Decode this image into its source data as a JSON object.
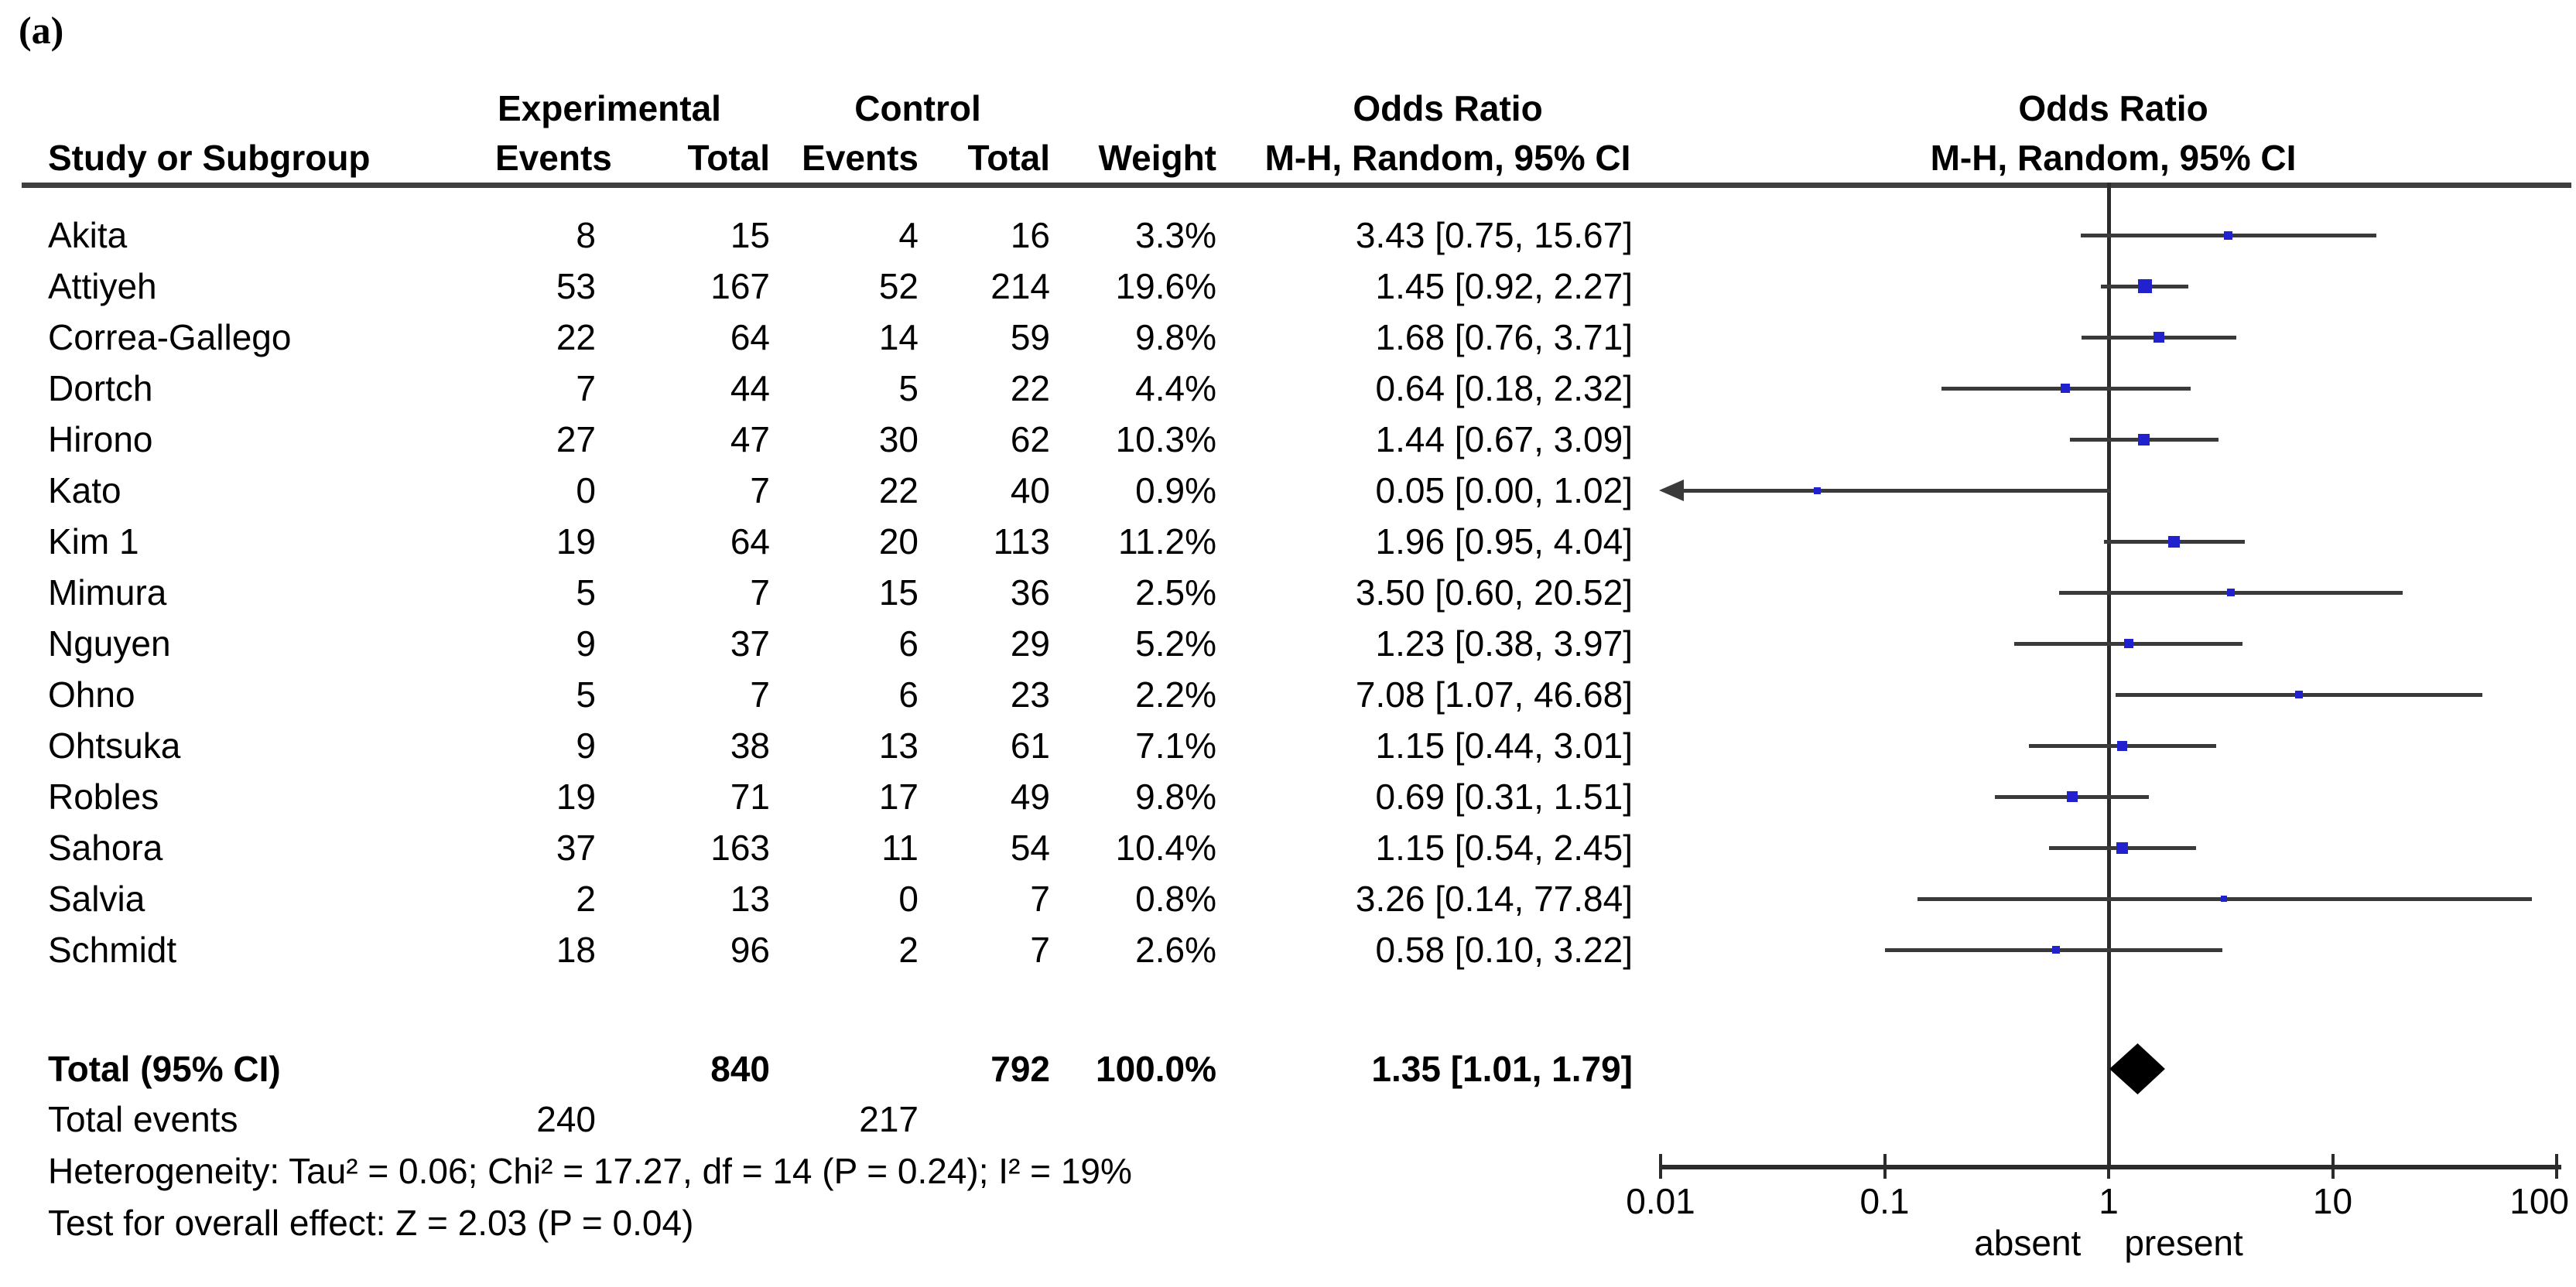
{
  "panel_label": "(a)",
  "table": {
    "group_exp": "Experimental",
    "group_ctl": "Control",
    "or_title_text": "Odds Ratio",
    "or_title_plot": "Odds Ratio",
    "col_study": "Study or Subgroup",
    "col_events": "Events",
    "col_total": "Total",
    "col_events2": "Events",
    "col_total2": "Total",
    "col_weight": "Weight",
    "col_mh_text": "M-H, Random, 95% CI",
    "col_mh_plot": "M-H, Random, 95% CI"
  },
  "colors": {
    "marker": "#2121cd",
    "ci_line": "#3a3a3a",
    "axis": "#2b2b2b",
    "rule": "#3f3f3f",
    "diamond": "#000000"
  },
  "chart_data": {
    "type": "scatter",
    "subtype": "forest-plot",
    "effect_measure": "Odds Ratio",
    "method": "M-H, Random, 95% CI",
    "x_axis": {
      "scale": "log",
      "xlim": [
        0.01,
        100
      ],
      "ticks": [
        0.01,
        0.1,
        1,
        10,
        100
      ],
      "tick_labels": [
        "0.01",
        "0.1",
        "1",
        "10",
        "100"
      ],
      "left_label": "absent",
      "right_label": "present"
    },
    "studies": [
      {
        "name": "Akita",
        "exp_events": 8,
        "exp_total": 15,
        "ctl_events": 4,
        "ctl_total": 16,
        "weight": "3.3%",
        "weight_pct": 3.3,
        "or": 3.43,
        "ci_low": 0.75,
        "ci_high": 15.67,
        "or_label": "3.43 [0.75, 15.67]"
      },
      {
        "name": "Attiyeh",
        "exp_events": 53,
        "exp_total": 167,
        "ctl_events": 52,
        "ctl_total": 214,
        "weight": "19.6%",
        "weight_pct": 19.6,
        "or": 1.45,
        "ci_low": 0.92,
        "ci_high": 2.27,
        "or_label": "1.45 [0.92, 2.27]"
      },
      {
        "name": "Correa-Gallego",
        "exp_events": 22,
        "exp_total": 64,
        "ctl_events": 14,
        "ctl_total": 59,
        "weight": "9.8%",
        "weight_pct": 9.8,
        "or": 1.68,
        "ci_low": 0.76,
        "ci_high": 3.71,
        "or_label": "1.68 [0.76, 3.71]"
      },
      {
        "name": "Dortch",
        "exp_events": 7,
        "exp_total": 44,
        "ctl_events": 5,
        "ctl_total": 22,
        "weight": "4.4%",
        "weight_pct": 4.4,
        "or": 0.64,
        "ci_low": 0.18,
        "ci_high": 2.32,
        "or_label": "0.64 [0.18, 2.32]"
      },
      {
        "name": "Hirono",
        "exp_events": 27,
        "exp_total": 47,
        "ctl_events": 30,
        "ctl_total": 62,
        "weight": "10.3%",
        "weight_pct": 10.3,
        "or": 1.44,
        "ci_low": 0.67,
        "ci_high": 3.09,
        "or_label": "1.44 [0.67, 3.09]"
      },
      {
        "name": "Kato",
        "exp_events": 0,
        "exp_total": 7,
        "ctl_events": 22,
        "ctl_total": 40,
        "weight": "0.9%",
        "weight_pct": 0.9,
        "or": 0.05,
        "ci_low": 0.0,
        "ci_high": 1.02,
        "or_label": "0.05 [0.00, 1.02]"
      },
      {
        "name": "Kim 1",
        "exp_events": 19,
        "exp_total": 64,
        "ctl_events": 20,
        "ctl_total": 113,
        "weight": "11.2%",
        "weight_pct": 11.2,
        "or": 1.96,
        "ci_low": 0.95,
        "ci_high": 4.04,
        "or_label": "1.96 [0.95, 4.04]"
      },
      {
        "name": "Mimura",
        "exp_events": 5,
        "exp_total": 7,
        "ctl_events": 15,
        "ctl_total": 36,
        "weight": "2.5%",
        "weight_pct": 2.5,
        "or": 3.5,
        "ci_low": 0.6,
        "ci_high": 20.52,
        "or_label": "3.50 [0.60, 20.52]"
      },
      {
        "name": "Nguyen",
        "exp_events": 9,
        "exp_total": 37,
        "ctl_events": 6,
        "ctl_total": 29,
        "weight": "5.2%",
        "weight_pct": 5.2,
        "or": 1.23,
        "ci_low": 0.38,
        "ci_high": 3.97,
        "or_label": "1.23 [0.38, 3.97]"
      },
      {
        "name": "Ohno",
        "exp_events": 5,
        "exp_total": 7,
        "ctl_events": 6,
        "ctl_total": 23,
        "weight": "2.2%",
        "weight_pct": 2.2,
        "or": 7.08,
        "ci_low": 1.07,
        "ci_high": 46.68,
        "or_label": "7.08 [1.07, 46.68]"
      },
      {
        "name": "Ohtsuka",
        "exp_events": 9,
        "exp_total": 38,
        "ctl_events": 13,
        "ctl_total": 61,
        "weight": "7.1%",
        "weight_pct": 7.1,
        "or": 1.15,
        "ci_low": 0.44,
        "ci_high": 3.01,
        "or_label": "1.15 [0.44, 3.01]"
      },
      {
        "name": "Robles",
        "exp_events": 19,
        "exp_total": 71,
        "ctl_events": 17,
        "ctl_total": 49,
        "weight": "9.8%",
        "weight_pct": 9.8,
        "or": 0.69,
        "ci_low": 0.31,
        "ci_high": 1.51,
        "or_label": "0.69 [0.31, 1.51]"
      },
      {
        "name": "Sahora",
        "exp_events": 37,
        "exp_total": 163,
        "ctl_events": 11,
        "ctl_total": 54,
        "weight": "10.4%",
        "weight_pct": 10.4,
        "or": 1.15,
        "ci_low": 0.54,
        "ci_high": 2.45,
        "or_label": "1.15 [0.54, 2.45]"
      },
      {
        "name": "Salvia",
        "exp_events": 2,
        "exp_total": 13,
        "ctl_events": 0,
        "ctl_total": 7,
        "weight": "0.8%",
        "weight_pct": 0.8,
        "or": 3.26,
        "ci_low": 0.14,
        "ci_high": 77.84,
        "or_label": "3.26 [0.14, 77.84]"
      },
      {
        "name": "Schmidt",
        "exp_events": 18,
        "exp_total": 96,
        "ctl_events": 2,
        "ctl_total": 7,
        "weight": "2.6%",
        "weight_pct": 2.6,
        "or": 0.58,
        "ci_low": 0.1,
        "ci_high": 3.22,
        "or_label": "0.58 [0.10, 3.22]"
      }
    ],
    "total": {
      "label": "Total (95% CI)",
      "exp_total": 840,
      "ctl_total": 792,
      "weight": "100.0%",
      "or": 1.35,
      "ci_low": 1.01,
      "ci_high": 1.79,
      "or_label": "1.35 [1.01, 1.79]"
    },
    "total_events": {
      "label": "Total events",
      "exp": 240,
      "ctl": 217
    },
    "heterogeneity": "Heterogeneity: Tau² = 0.06; Chi² = 17.27, df = 14 (P = 0.24); I² = 19%",
    "overall_effect": "Test for overall effect: Z = 2.03 (P = 0.04)"
  }
}
